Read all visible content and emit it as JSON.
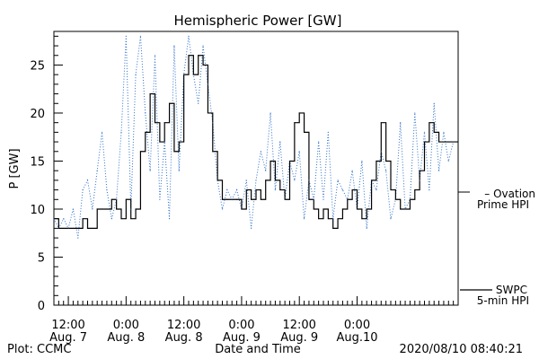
{
  "colors": {
    "swpc": "#000000",
    "ovation": "#2d6fc9",
    "axis": "#000000",
    "background": "#ffffff"
  },
  "chart_data": {
    "type": "line",
    "title": "Hemispheric Power [GW]",
    "ylabel": "P [GW]",
    "xlabel": "Date and Time",
    "ylim": [
      0,
      28.5
    ],
    "yticks": [
      0,
      5,
      10,
      15,
      20,
      25
    ],
    "xlim_hours": [
      0,
      84
    ],
    "xticks": [
      {
        "hours": 3,
        "label1": "12:00",
        "label2": "Aug. 7"
      },
      {
        "hours": 15,
        "label1": "0:00",
        "label2": "Aug. 8"
      },
      {
        "hours": 27,
        "label1": "12:00",
        "label2": "Aug. 8"
      },
      {
        "hours": 39,
        "label1": "0:00",
        "label2": "Aug. 9"
      },
      {
        "hours": 51,
        "label1": "12:00",
        "label2": "Aug. 9"
      },
      {
        "hours": 63,
        "label1": "0:00",
        "label2": "Aug.10"
      }
    ],
    "footer_left": "Plot: CCMC",
    "footer_right": "2020/08/10 08:40:21",
    "series": [
      {
        "name": "SWPC 5-min HPI",
        "name_line1": "SWPC",
        "name_line2": "5-min HPI",
        "style": "solid",
        "x": [
          0,
          1,
          2,
          3,
          4,
          5,
          5.5,
          6,
          7,
          8,
          9,
          10,
          11,
          12,
          13,
          14,
          15,
          16,
          17,
          18,
          19,
          20,
          21,
          22,
          23,
          24,
          25,
          25.5,
          26,
          27,
          28,
          29,
          30,
          31,
          32,
          33,
          34,
          35,
          36,
          37,
          38,
          39,
          40,
          41,
          42,
          43,
          44,
          45,
          46,
          47,
          48,
          49,
          50,
          51,
          52,
          53,
          54,
          55,
          56,
          57,
          58,
          59,
          60,
          61,
          62,
          63,
          64,
          65,
          66,
          67,
          68,
          69,
          70,
          71,
          72,
          73,
          74,
          75,
          76,
          77,
          78,
          79,
          80,
          81,
          82,
          83,
          84
        ],
        "y": [
          9,
          8,
          8,
          8,
          8,
          8,
          8,
          9,
          8,
          8,
          10,
          10,
          10,
          11,
          10,
          9,
          11,
          9,
          10,
          16,
          18,
          22,
          19,
          17,
          19,
          21,
          16,
          16,
          17,
          24,
          26,
          24,
          26,
          25,
          20,
          16,
          13,
          11,
          11,
          11,
          11,
          10,
          12,
          11,
          12,
          11,
          13,
          15,
          13,
          12,
          11,
          15,
          19,
          20,
          18,
          11,
          10,
          9,
          10,
          9,
          8,
          9,
          10,
          11,
          12,
          10,
          9,
          10,
          13,
          15,
          19,
          15,
          12,
          11,
          10,
          10,
          11,
          12,
          14,
          17,
          19,
          18,
          17,
          17,
          17,
          17,
          17
        ]
      },
      {
        "name": "Ovation Prime HPI",
        "name_line1": "– Ovation",
        "name_line2": "Prime HPI",
        "style": "dotted",
        "x": [
          0,
          1,
          2,
          3,
          4,
          5,
          6,
          7,
          8,
          9,
          10,
          11,
          12,
          13,
          14,
          15,
          16,
          17,
          18,
          19,
          20,
          21,
          22,
          23,
          24,
          25,
          26,
          27,
          28,
          29,
          30,
          31,
          32,
          33,
          34,
          35,
          36,
          37,
          38,
          39,
          40,
          41,
          42,
          43,
          44,
          45,
          46,
          47,
          48,
          49,
          50,
          51,
          52,
          53,
          54,
          55,
          56,
          57,
          58,
          59,
          60,
          61,
          62,
          63,
          64,
          65,
          66,
          67,
          68,
          69,
          70,
          71,
          72,
          73,
          74,
          75,
          76,
          77,
          78,
          79,
          80,
          81,
          82,
          83
        ],
        "y": [
          9,
          8,
          9,
          8,
          10,
          7,
          12,
          13,
          10,
          14,
          18,
          12,
          9,
          11,
          18,
          28,
          10,
          24,
          28,
          20,
          14,
          26,
          11,
          17,
          9,
          27,
          14,
          24,
          28,
          24,
          21,
          27,
          23,
          19,
          13,
          10,
          12,
          11,
          12,
          10,
          13,
          8,
          13,
          16,
          14,
          20,
          12,
          17,
          11,
          15,
          13,
          16,
          9,
          13,
          11,
          17,
          11,
          18,
          9,
          13,
          12,
          11,
          14,
          10,
          15,
          8,
          13,
          12,
          16,
          14,
          9,
          11,
          19,
          10,
          11,
          20,
          13,
          18,
          12,
          21,
          14,
          18,
          15,
          17
        ]
      }
    ]
  }
}
